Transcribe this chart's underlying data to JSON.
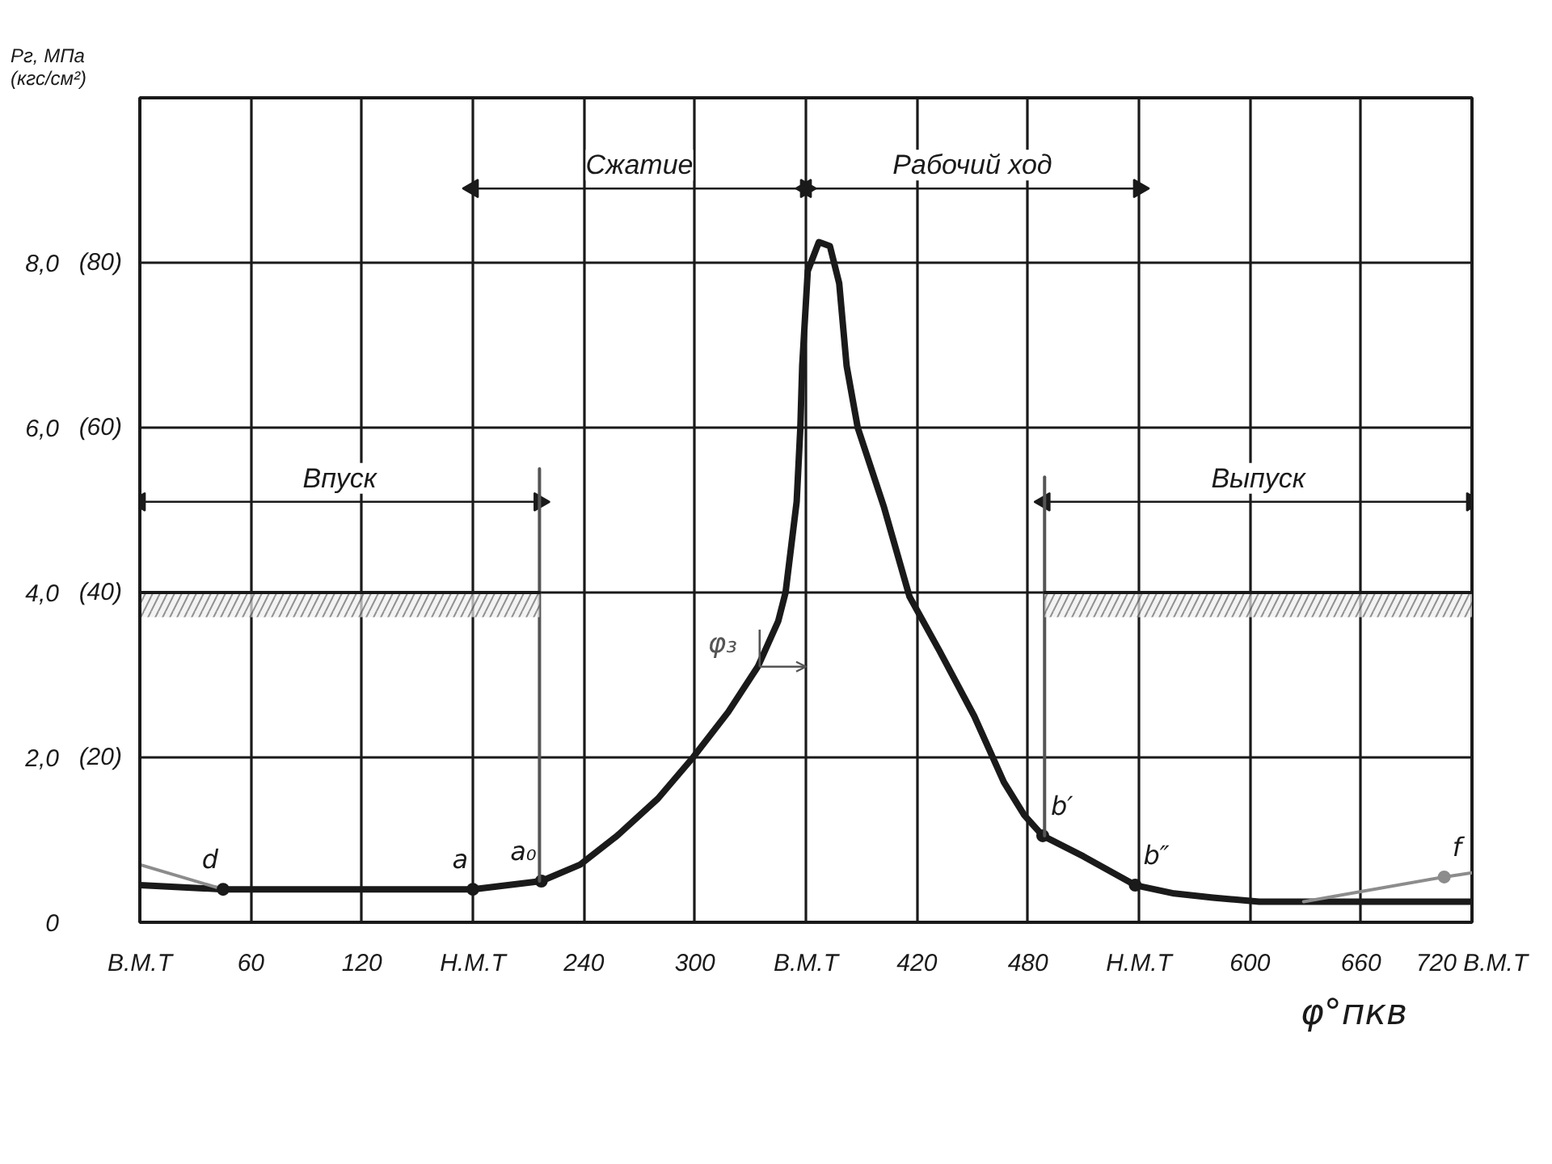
{
  "chart_data": {
    "type": "line",
    "ylabel": "Рг, МПа\n(кгс/см²)",
    "xlabel": "φ°пкв",
    "xlim": [
      0,
      720
    ],
    "ylim": [
      0,
      10
    ],
    "y2lim": [
      0,
      100
    ],
    "xticks": [
      {
        "value": 0,
        "label": "В.М.Т"
      },
      60,
      120,
      {
        "value": 180,
        "label": "Н.М.Т"
      },
      240,
      300,
      {
        "value": 360,
        "label": "В.М.Т"
      },
      420,
      480,
      {
        "value": 540,
        "label": "Н.М.Т"
      },
      600,
      660,
      {
        "value": 720,
        "label": "720 В.М.Т"
      }
    ],
    "yticks": [
      0,
      {
        "value": 2,
        "label": "2,0"
      },
      {
        "value": 4,
        "label": "4,0"
      },
      {
        "value": 6,
        "label": "6,0"
      },
      {
        "value": 8,
        "label": "8,0"
      }
    ],
    "y2ticks": [
      {
        "value": 20,
        "label": "(20)"
      },
      {
        "value": 40,
        "label": "(40)"
      },
      {
        "value": 60,
        "label": "(60)"
      },
      {
        "value": 80,
        "label": "(80)"
      }
    ],
    "grid": true,
    "series": [
      {
        "color": "#1a1a1a",
        "x": [
          0,
          45,
          180,
          217,
          238,
          258,
          280,
          299,
          318,
          334,
          345,
          349,
          355,
          357,
          358,
          361,
          367,
          373,
          378,
          382,
          388,
          402,
          416,
          432,
          451,
          467,
          478,
          488,
          510,
          538,
          559,
          580,
          605,
          659,
          720
        ],
        "values": [
          0.45,
          0.4,
          0.4,
          0.5,
          0.7,
          1.05,
          1.5,
          2,
          2.55,
          3.1,
          3.65,
          4,
          5.1,
          6,
          6.75,
          7.9,
          8.25,
          8.2,
          7.75,
          6.75,
          6,
          5.05,
          3.95,
          3.3,
          2.5,
          1.7,
          1.3,
          1.05,
          0.8,
          0.45,
          0.35,
          0.3,
          0.25,
          0.25,
          0.25
        ]
      },
      {
        "color": "#8c8c8c",
        "x": [
          0,
          45
        ],
        "values": [
          0.7,
          0.4
        ]
      },
      {
        "color": "#8c8c8c",
        "x": [
          629,
          705,
          720
        ],
        "values": [
          0.25,
          0.55,
          0.6
        ]
      },
      {
        "type": "scatter",
        "marker": "circle",
        "colors": [
          "#1a1a1a",
          "#1a1a1a",
          "#1a1a1a",
          "#1a1a1a",
          "#1a1a1a",
          "#8c8c8c"
        ],
        "x": [
          45,
          180,
          217,
          488,
          538,
          705
        ],
        "values": [
          0.4,
          0.4,
          0.5,
          1.05,
          0.45,
          0.55
        ]
      },
      {
        "name": "Сжатие",
        "marker": "triangle",
        "color": "#1a1a1a",
        "x": [
          180,
          360
        ],
        "values": [
          8.9,
          8.9
        ]
      },
      {
        "name": "Рабочий ход",
        "marker": "triangle",
        "color": "#1a1a1a",
        "x": [
          360,
          540
        ],
        "values": [
          8.9,
          8.9
        ]
      },
      {
        "name": "Впуск",
        "marker": "triangle",
        "color": "#1a1a1a",
        "x": [
          0,
          216
        ],
        "values": [
          5.1,
          5.1
        ]
      },
      {
        "name": "Выпуск",
        "marker": "triangle",
        "color": "#1a1a1a",
        "x": [
          489,
          720
        ],
        "values": [
          5.1,
          5.1
        ]
      },
      {
        "color": "#555555",
        "x": [
          216,
          216
        ],
        "values": [
          5.5,
          0.5
        ]
      },
      {
        "color": "#555555",
        "x": [
          489,
          489
        ],
        "values": [
          5.4,
          1.05
        ]
      },
      {
        "color": "#1a1a1a",
        "x": [
          0,
          216
        ],
        "values": [
          4,
          4
        ],
        "lower": [
          3.7,
          3.7
        ],
        "upper": [
          4,
          4
        ]
      },
      {
        "color": "#1a1a1a",
        "x": [
          489,
          720
        ],
        "values": [
          4,
          4
        ],
        "lower": [
          3.7,
          3.7
        ],
        "upper": [
          4,
          4
        ]
      }
    ],
    "annotations": [
      {
        "text": "d",
        "x": 45,
        "y": 0.4
      },
      {
        "text": "a",
        "x": 180,
        "y": 0.4
      },
      {
        "text": "a₀",
        "x": 217,
        "y": 0.5
      },
      {
        "text": "b′",
        "x": 488,
        "y": 1.05
      },
      {
        "text": "b″",
        "x": 538,
        "y": 0.45
      },
      {
        "text": "f",
        "x": 705,
        "y": 0.55
      },
      {
        "text": "φ₃",
        "x": 335,
        "y": 3.1
      }
    ]
  }
}
